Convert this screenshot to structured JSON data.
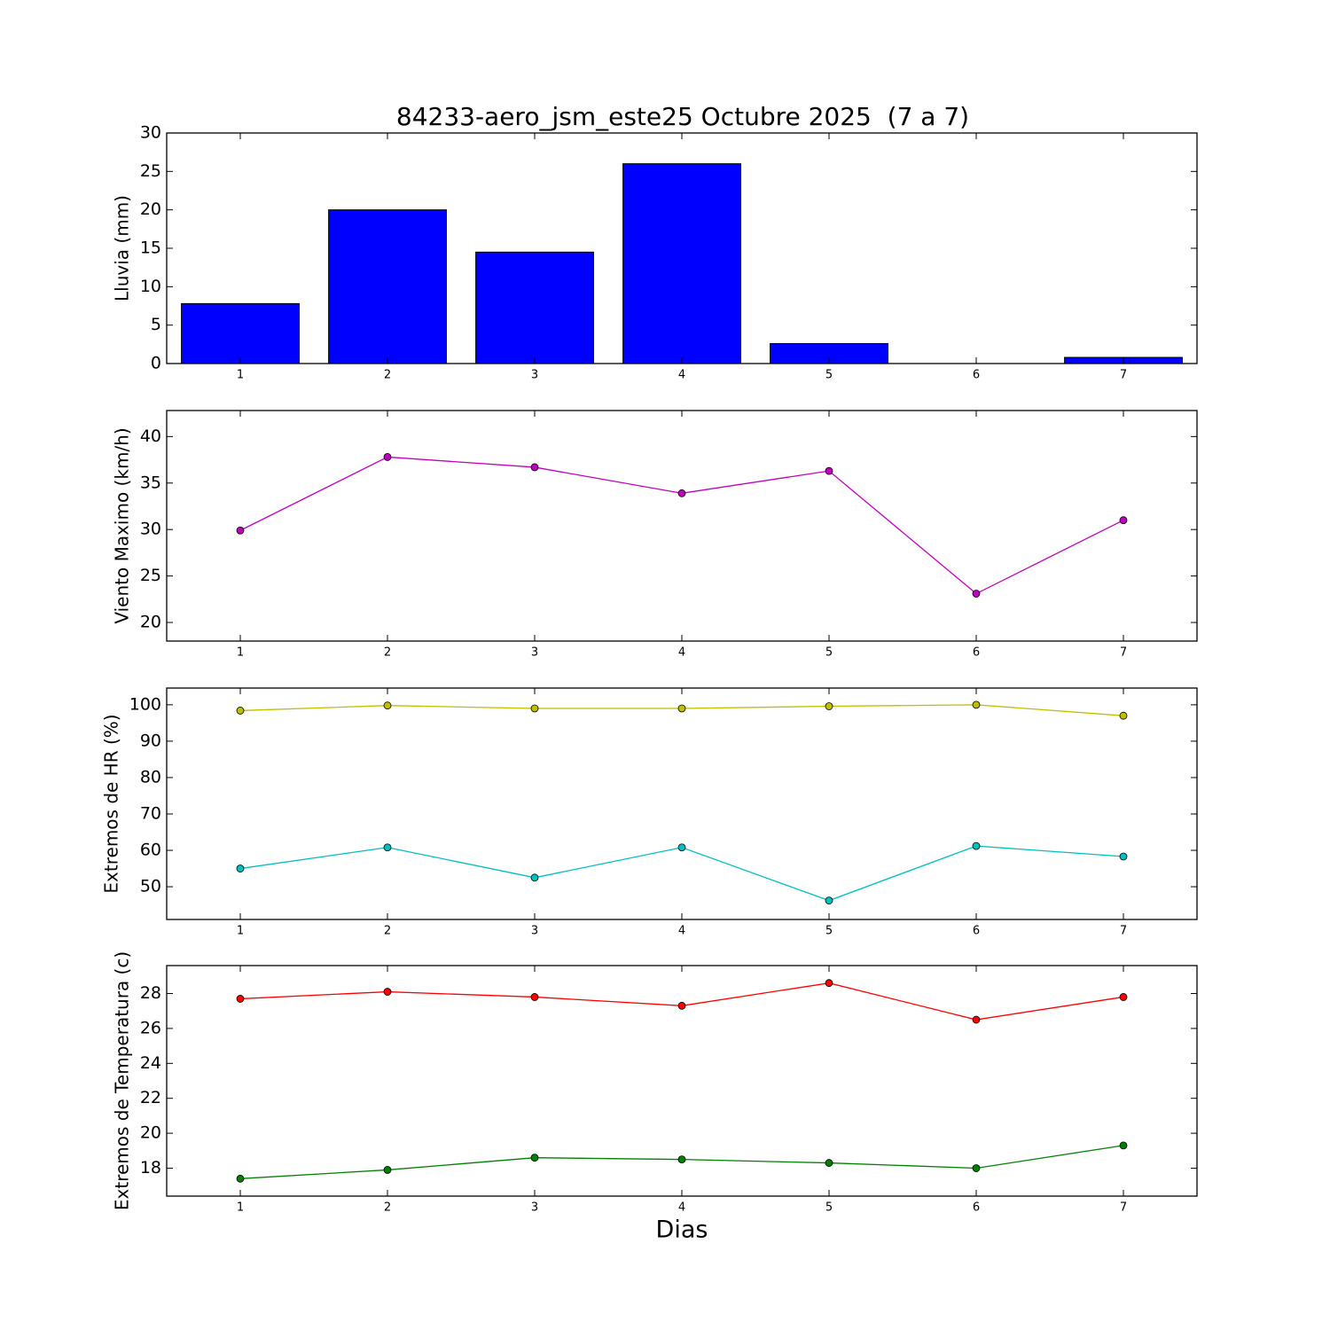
{
  "chart_data": [
    {
      "type": "bar",
      "title": "84233-aero_jsm_este25 Octubre 2025  (7 a 7)",
      "ylabel": "Lluvia (mm)",
      "x": [
        1,
        2,
        3,
        4,
        5,
        6,
        7
      ],
      "values": [
        7.8,
        20,
        14.5,
        26,
        2.6,
        0,
        0.8
      ],
      "color": "#0000ff",
      "xlim": [
        0.5,
        7.5
      ],
      "xticks": [
        1,
        2,
        3,
        4,
        5,
        6,
        7
      ],
      "ylim": [
        0,
        30
      ],
      "yticks": [
        0,
        5,
        10,
        15,
        20,
        25,
        30
      ]
    },
    {
      "type": "line",
      "ylabel": "Viento Maximo (km/h)",
      "x": [
        1,
        2,
        3,
        4,
        5,
        6,
        7
      ],
      "series": [
        {
          "color": "#bf00bf",
          "values": [
            29.9,
            37.8,
            36.7,
            33.9,
            36.3,
            23.1,
            31.0
          ]
        }
      ],
      "xlim": [
        0.5,
        7.5
      ],
      "xticks": [
        1,
        2,
        3,
        4,
        5,
        6,
        7
      ],
      "ylim": [
        18,
        42.8
      ],
      "yticks": [
        20,
        25,
        30,
        35,
        40
      ]
    },
    {
      "type": "line",
      "ylabel": "Extremos de HR (%)",
      "x": [
        1,
        2,
        3,
        4,
        5,
        6,
        7
      ],
      "series": [
        {
          "color": "#bfbf00",
          "values": [
            98.4,
            99.8,
            99.0,
            99.0,
            99.6,
            100,
            97.0
          ]
        },
        {
          "color": "#00bfbf",
          "values": [
            55,
            60.8,
            52.5,
            60.8,
            46.2,
            61.2,
            58.3
          ]
        }
      ],
      "xlim": [
        0.5,
        7.5
      ],
      "xticks": [
        1,
        2,
        3,
        4,
        5,
        6,
        7
      ],
      "ylim": [
        41,
        104.6
      ],
      "yticks": [
        50,
        60,
        70,
        80,
        90,
        100
      ]
    },
    {
      "type": "line",
      "ylabel": "Extremos de Temperatura (c)",
      "xlabel": "Dias",
      "x": [
        1,
        2,
        3,
        4,
        5,
        6,
        7
      ],
      "series": [
        {
          "color": "#ff0000",
          "values": [
            27.7,
            28.1,
            27.8,
            27.3,
            28.6,
            26.5,
            27.8
          ]
        },
        {
          "color": "#007f00",
          "values": [
            17.4,
            17.9,
            18.6,
            18.5,
            18.3,
            18.0,
            19.3
          ]
        }
      ],
      "xlim": [
        0.5,
        7.5
      ],
      "xticks": [
        1,
        2,
        3,
        4,
        5,
        6,
        7
      ],
      "ylim": [
        16.4,
        29.6
      ],
      "yticks": [
        18,
        20,
        22,
        24,
        26,
        28
      ]
    }
  ]
}
